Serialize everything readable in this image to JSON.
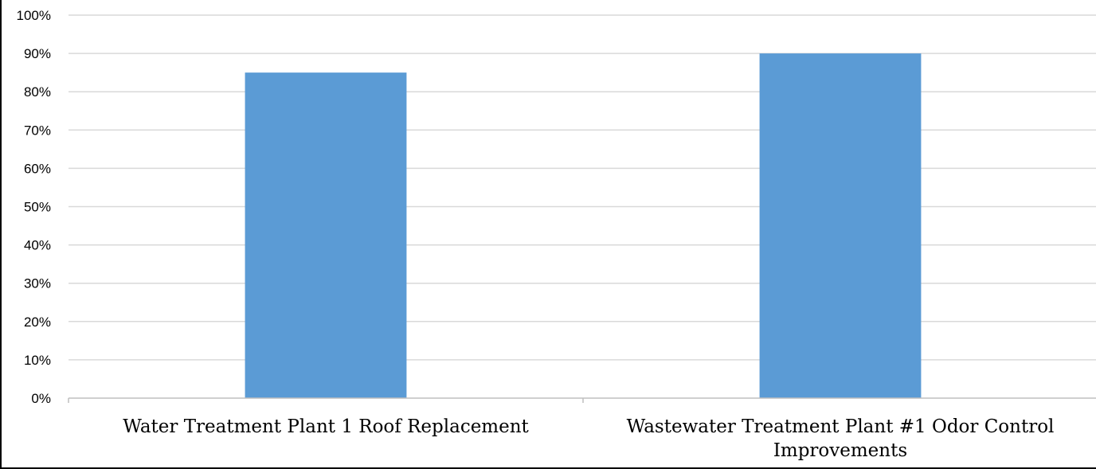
{
  "chart_data": {
    "type": "bar",
    "categories": [
      [
        "Water Treatment Plant 1 Roof Replacement"
      ],
      [
        "Wastewater Treatment Plant #1 Odor Control",
        "Improvements"
      ]
    ],
    "values": [
      85,
      90
    ],
    "ylim": [
      0,
      100
    ],
    "ytick_step": 10,
    "ytick_suffix": "%",
    "grid": true,
    "legend": "none",
    "colors": {
      "bar": "#5b9bd5",
      "grid": "#d9d9d9",
      "axis": "#bfbfbf"
    }
  }
}
